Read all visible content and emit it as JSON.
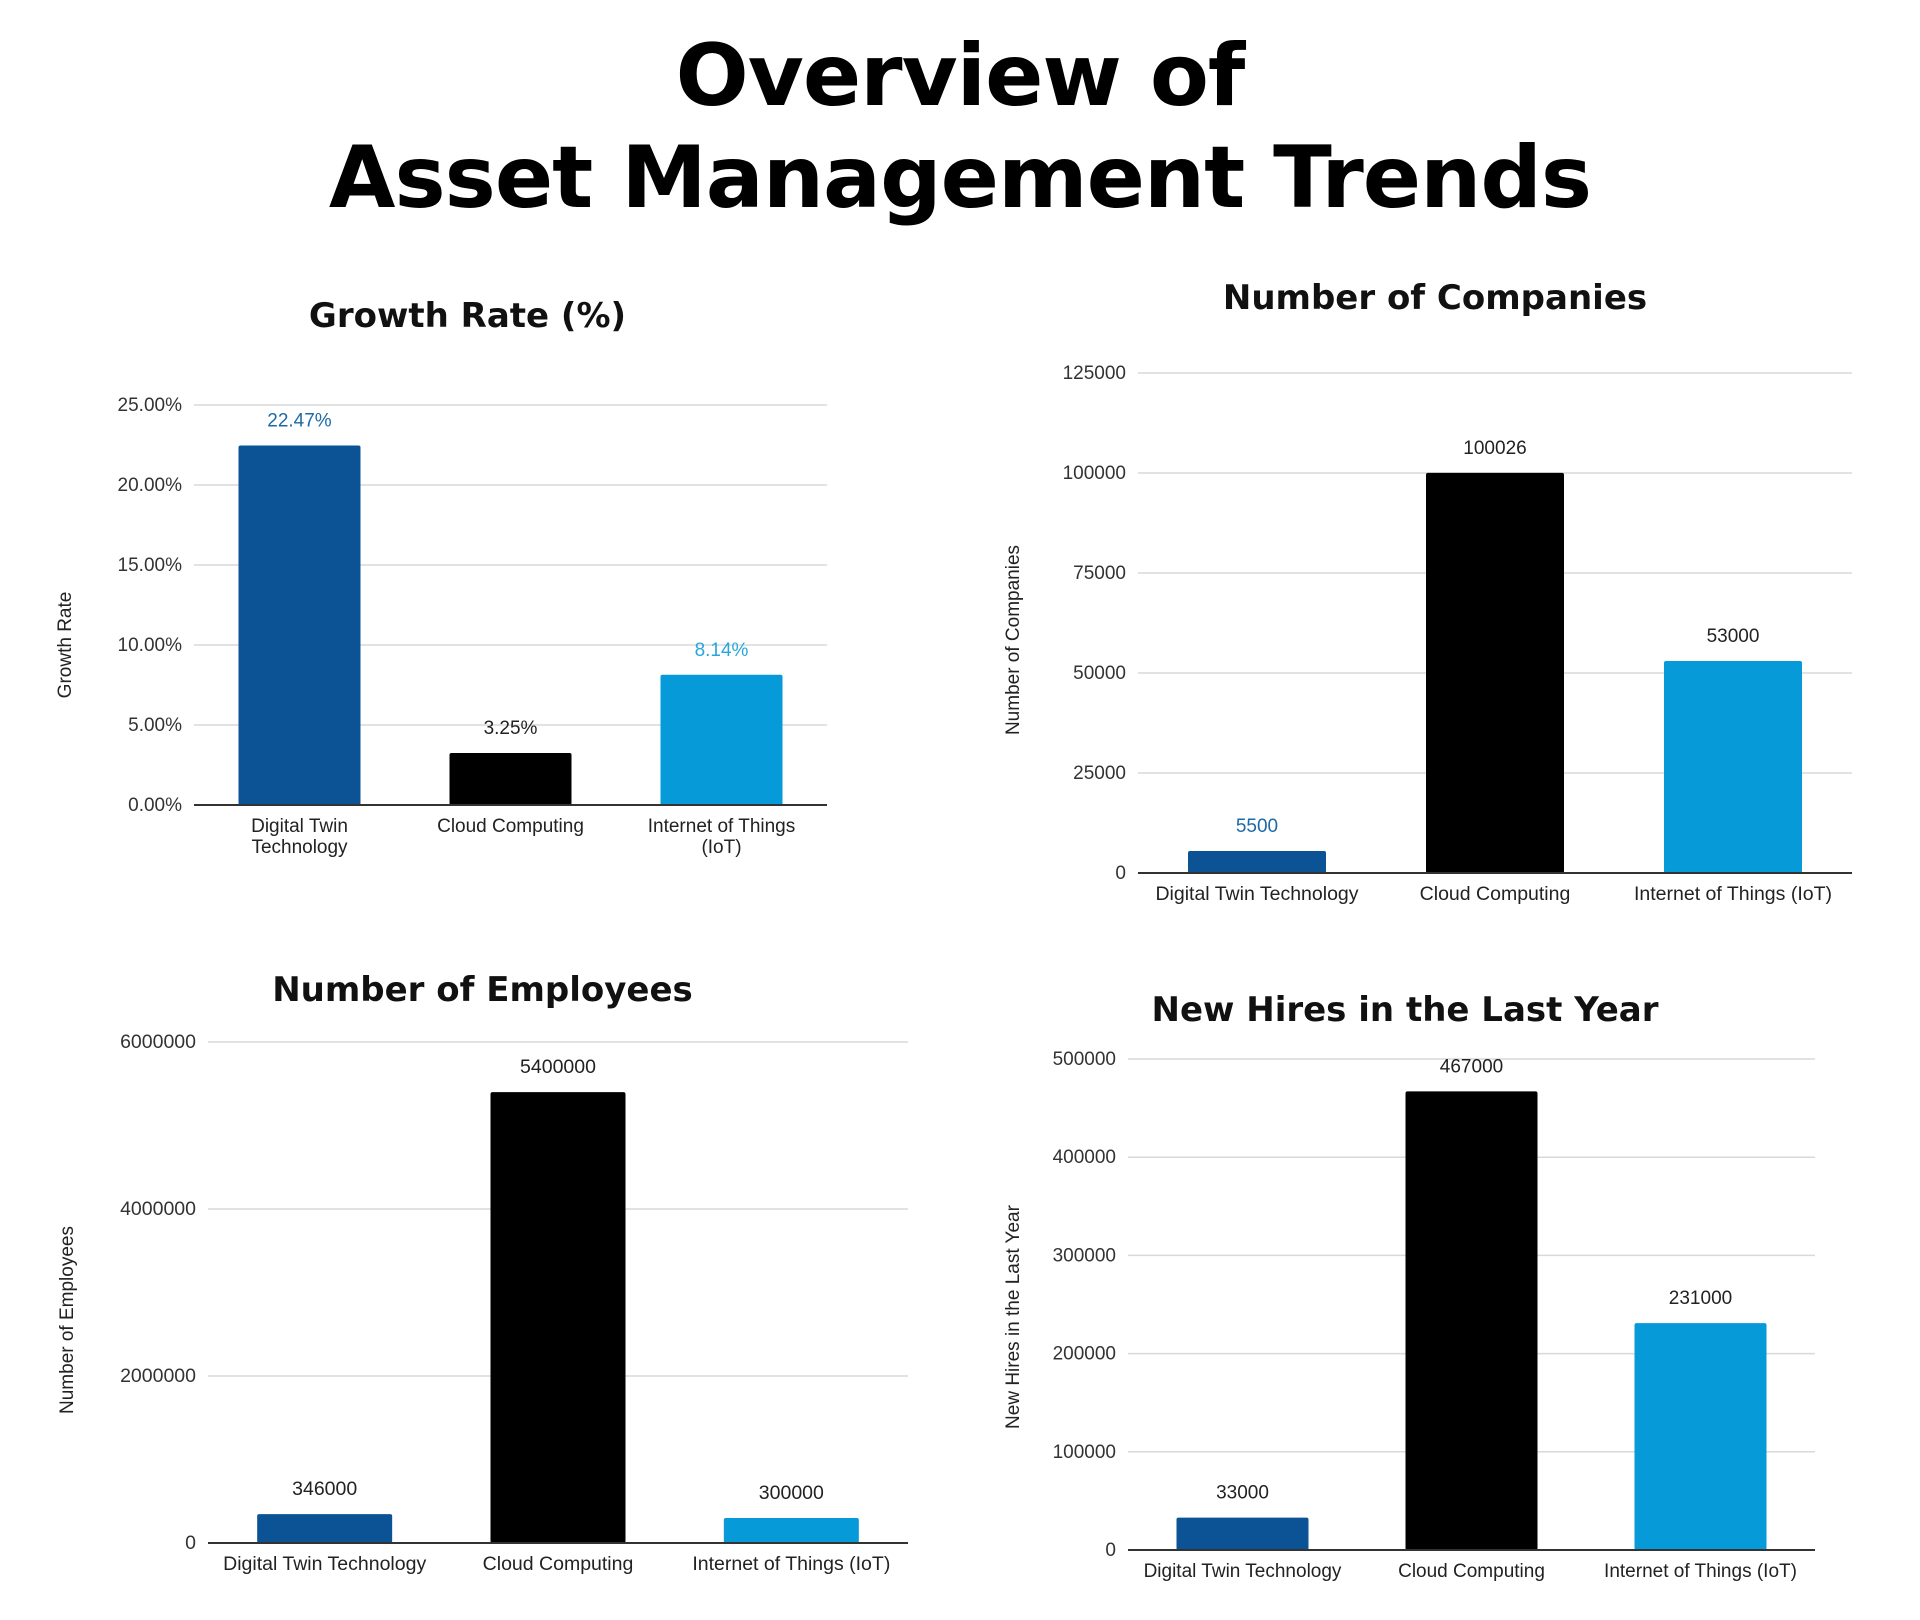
{
  "header": {
    "title_line_1": "Overview of",
    "title_line_2": "Asset Management Trends"
  },
  "colors": {
    "digital_twin": "#0b5394",
    "cloud_computing": "#000000",
    "iot": "#069bd8",
    "grid": "#d9d9d9",
    "axis": "#333333"
  },
  "chart_data": [
    {
      "type": "bar",
      "title": "Growth Rate (%)",
      "xlabel": "",
      "ylabel": "Growth Rate",
      "categories": [
        "Digital Twin Technology",
        "Cloud Computing",
        "Internet of Things (IoT)"
      ],
      "category_lines": [
        [
          "Digital Twin",
          "Technology"
        ],
        [
          "Cloud Computing"
        ],
        [
          "Internet of Things",
          "(IoT)"
        ]
      ],
      "values": [
        22.47,
        3.25,
        8.14
      ],
      "value_labels": [
        "22.47%",
        "3.25%",
        "8.14%"
      ],
      "label_colors": [
        "#1c6aa8",
        "#222222",
        "#2aa6dc"
      ],
      "bar_colors": [
        "#0b5394",
        "#000000",
        "#069bd8"
      ],
      "ylim": [
        0,
        25
      ],
      "yticks": [
        0,
        5,
        10,
        15,
        20,
        25
      ],
      "ytick_labels": [
        "0.00%",
        "5.00%",
        "10.00%",
        "15.00%",
        "20.00%",
        "25.00%"
      ],
      "grid": true,
      "legend": "none"
    },
    {
      "type": "bar",
      "title": "Number of Companies",
      "xlabel": "",
      "ylabel": "Number of Companies",
      "categories": [
        "Digital Twin Technology",
        "Cloud Computing",
        "Internet of Things (IoT)"
      ],
      "category_lines": [
        [
          "Digital Twin Technology"
        ],
        [
          "Cloud Computing"
        ],
        [
          "Internet of Things (IoT)"
        ]
      ],
      "values": [
        5500,
        100026,
        53000
      ],
      "value_labels": [
        "5500",
        "100026",
        "53000"
      ],
      "label_colors": [
        "#1c6aa8",
        "#222222",
        "#222222"
      ],
      "bar_colors": [
        "#0b5394",
        "#000000",
        "#069bd8"
      ],
      "ylim": [
        0,
        125000
      ],
      "yticks": [
        0,
        25000,
        50000,
        75000,
        100000,
        125000
      ],
      "ytick_labels": [
        "0",
        "25000",
        "50000",
        "75000",
        "100000",
        "125000"
      ],
      "grid": true,
      "legend": "none"
    },
    {
      "type": "bar",
      "title": "Number of Employees",
      "xlabel": "",
      "ylabel": "Number of Employees",
      "categories": [
        "Digital Twin Technology",
        "Cloud Computing",
        "Internet of Things (IoT)"
      ],
      "category_lines": [
        [
          "Digital Twin Technology"
        ],
        [
          "Cloud Computing"
        ],
        [
          "Internet of Things (IoT)"
        ]
      ],
      "values": [
        346000,
        5400000,
        300000
      ],
      "value_labels": [
        "346000",
        "5400000",
        "300000"
      ],
      "label_colors": [
        "#222222",
        "#222222",
        "#222222"
      ],
      "bar_colors": [
        "#0b5394",
        "#000000",
        "#069bd8"
      ],
      "ylim": [
        0,
        6000000
      ],
      "yticks": [
        0,
        2000000,
        4000000,
        6000000
      ],
      "ytick_labels": [
        "0",
        "2000000",
        "4000000",
        "6000000"
      ],
      "grid": true,
      "legend": "none"
    },
    {
      "type": "bar",
      "title": "New Hires in the Last Year",
      "xlabel": "",
      "ylabel": "New Hires in the Last Year",
      "categories": [
        "Digital Twin Technology",
        "Cloud Computing",
        "Internet of Things (IoT)"
      ],
      "category_lines": [
        [
          "Digital Twin Technology"
        ],
        [
          "Cloud Computing"
        ],
        [
          "Internet of Things (IoT)"
        ]
      ],
      "values": [
        33000,
        467000,
        231000
      ],
      "value_labels": [
        "33000",
        "467000",
        "231000"
      ],
      "label_colors": [
        "#222222",
        "#222222",
        "#222222"
      ],
      "bar_colors": [
        "#0b5394",
        "#000000",
        "#069bd8"
      ],
      "ylim": [
        0,
        500000
      ],
      "yticks": [
        0,
        100000,
        200000,
        300000,
        400000,
        500000
      ],
      "ytick_labels": [
        "0",
        "100000",
        "200000",
        "300000",
        "400000",
        "500000"
      ],
      "grid": true,
      "legend": "none"
    }
  ]
}
